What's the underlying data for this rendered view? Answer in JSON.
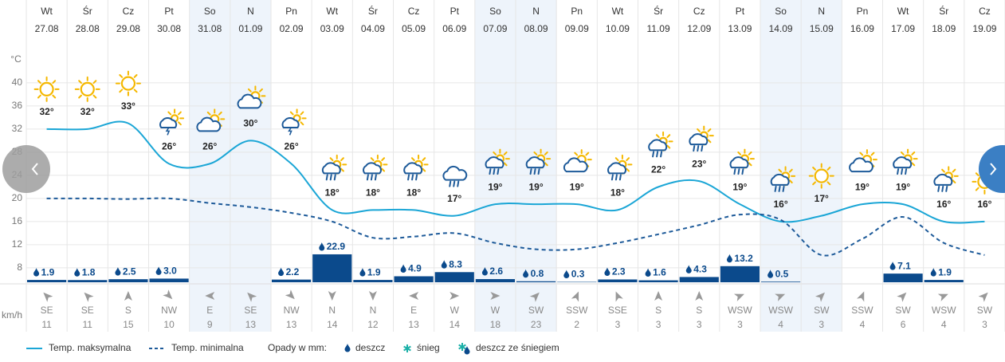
{
  "chart_data": {
    "type": "line",
    "weekdays": [
      "Wt",
      "Śr",
      "Cz",
      "Pt",
      "So",
      "N",
      "Pn",
      "Wt",
      "Śr",
      "Cz",
      "Pt",
      "So",
      "N",
      "Pn",
      "Wt",
      "Śr",
      "Cz",
      "Pt",
      "So",
      "N",
      "Pn",
      "Wt",
      "Śr",
      "Cz"
    ],
    "categories": [
      "27.08",
      "28.08",
      "29.08",
      "30.08",
      "31.08",
      "01.09",
      "02.09",
      "03.09",
      "04.09",
      "05.09",
      "06.09",
      "07.09",
      "08.09",
      "09.09",
      "10.09",
      "11.09",
      "12.09",
      "13.09",
      "14.09",
      "15.09",
      "16.09",
      "17.09",
      "18.09",
      "19.09"
    ],
    "y_unit": "°C",
    "ylim": [
      5.5,
      45.5
    ],
    "yticks": [
      8,
      12,
      16,
      20,
      24,
      28,
      32,
      36,
      40
    ],
    "grid": true,
    "series": [
      {
        "name": "Temp. maksymalna",
        "color": "#1ba6d6",
        "dashed": false,
        "values": [
          32,
          32,
          33,
          26,
          26,
          30,
          26,
          18,
          18,
          18,
          17,
          19,
          19,
          19,
          18,
          22,
          23,
          19,
          16,
          17,
          19,
          19,
          16,
          16
        ],
        "value_labels": [
          "32°",
          "32°",
          "33°",
          "26°",
          "26°",
          "30°",
          "26°",
          "18°",
          "18°",
          "18°",
          "17°",
          "19°",
          "19°",
          "19°",
          "18°",
          "22°",
          "23°",
          "19°",
          "16°",
          "17°",
          "19°",
          "19°",
          "16°",
          "16°"
        ]
      },
      {
        "name": "Temp. minimalna",
        "color": "#1d5a99",
        "dashed": true,
        "values": [
          20,
          20,
          19.9,
          20,
          19.2,
          18.5,
          17.5,
          16,
          13.2,
          13.4,
          14,
          12.3,
          11.2,
          11.2,
          12.3,
          13.8,
          15.4,
          17.2,
          16.3,
          10.2,
          13,
          16.8,
          12.3,
          10.2
        ]
      }
    ],
    "precipitation": {
      "label": "Opady w mm:",
      "color": "#0b4a8c",
      "values": [
        1.9,
        1.8,
        2.5,
        3.0,
        null,
        null,
        2.2,
        22.9,
        1.9,
        4.9,
        8.3,
        2.6,
        0.8,
        0.3,
        2.3,
        1.6,
        4.3,
        13.2,
        0.5,
        null,
        null,
        7.1,
        1.9,
        null
      ],
      "value_labels": [
        "1.9",
        "1.8",
        "2.5",
        "3.0",
        null,
        null,
        "2.2",
        "22.9",
        "1.9",
        "4.9",
        "8.3",
        "2.6",
        "0.8",
        "0.3",
        "2.3",
        "1.6",
        "4.3",
        "13.2",
        "0.5",
        null,
        null,
        "7.1",
        "1.9",
        null
      ],
      "legend": [
        "deszcz",
        "śnieg",
        "deszcz ze śniegiem"
      ]
    },
    "wind": {
      "unit": "km/h",
      "directions": [
        "SE",
        "SE",
        "S",
        "NW",
        "E",
        "SE",
        "NW",
        "N",
        "N",
        "E",
        "W",
        "W",
        "SW",
        "SSW",
        "SSE",
        "S",
        "S",
        "WSW",
        "WSW",
        "SW",
        "SSW",
        "SW",
        "WSW",
        "SW"
      ],
      "speeds": [
        11,
        11,
        15,
        10,
        9,
        13,
        13,
        14,
        12,
        13,
        14,
        18,
        23,
        2,
        3,
        3,
        3,
        3,
        4,
        3,
        4,
        6,
        4,
        3
      ]
    }
  }
}
